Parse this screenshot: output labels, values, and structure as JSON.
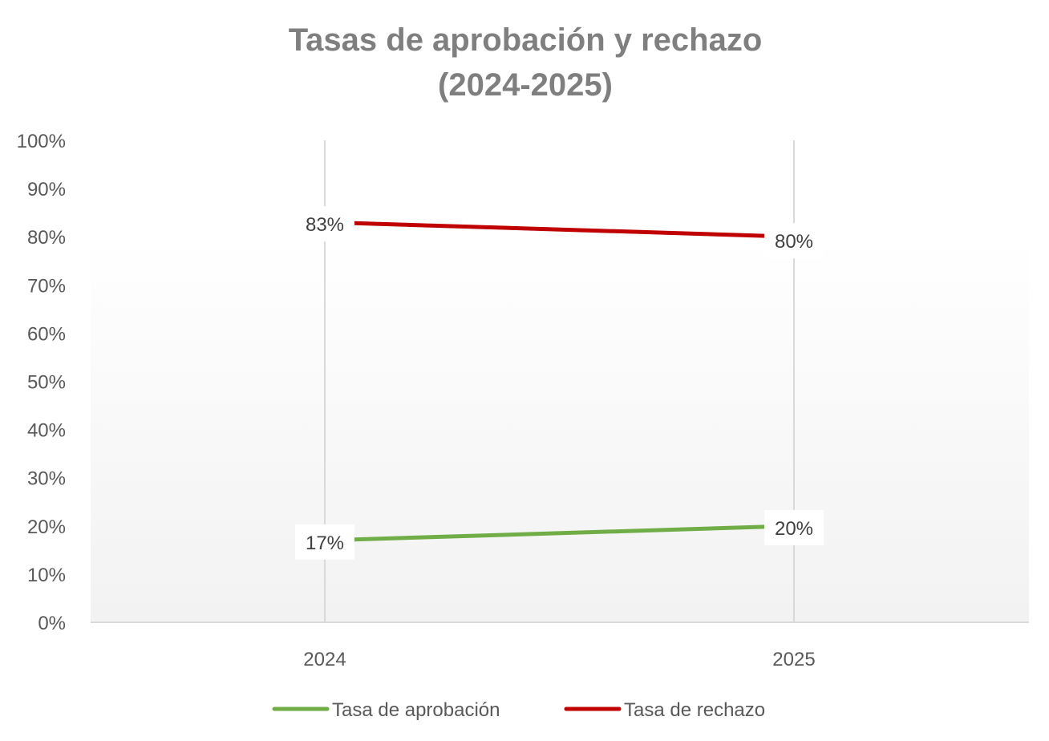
{
  "chart_data": {
    "type": "line",
    "title": [
      "Tasas de aprobación y rechazo",
      "(2024-2025)"
    ],
    "xlabel": "",
    "ylabel": "",
    "categories": [
      "2024",
      "2025"
    ],
    "ylim": [
      0,
      100
    ],
    "yticks": [
      "0%",
      "10%",
      "20%",
      "30%",
      "40%",
      "50%",
      "60%",
      "70%",
      "80%",
      "90%",
      "100%"
    ],
    "grid": "vertical",
    "legend_position": "bottom",
    "series": [
      {
        "name": "Tasa de aprobación",
        "values": [
          17,
          20
        ],
        "labels": [
          "17%",
          "20%"
        ],
        "color": "#70ad47"
      },
      {
        "name": "Tasa de rechazo",
        "values": [
          83,
          80
        ],
        "labels": [
          "83%",
          "80%"
        ],
        "color": "#c00000"
      }
    ]
  }
}
